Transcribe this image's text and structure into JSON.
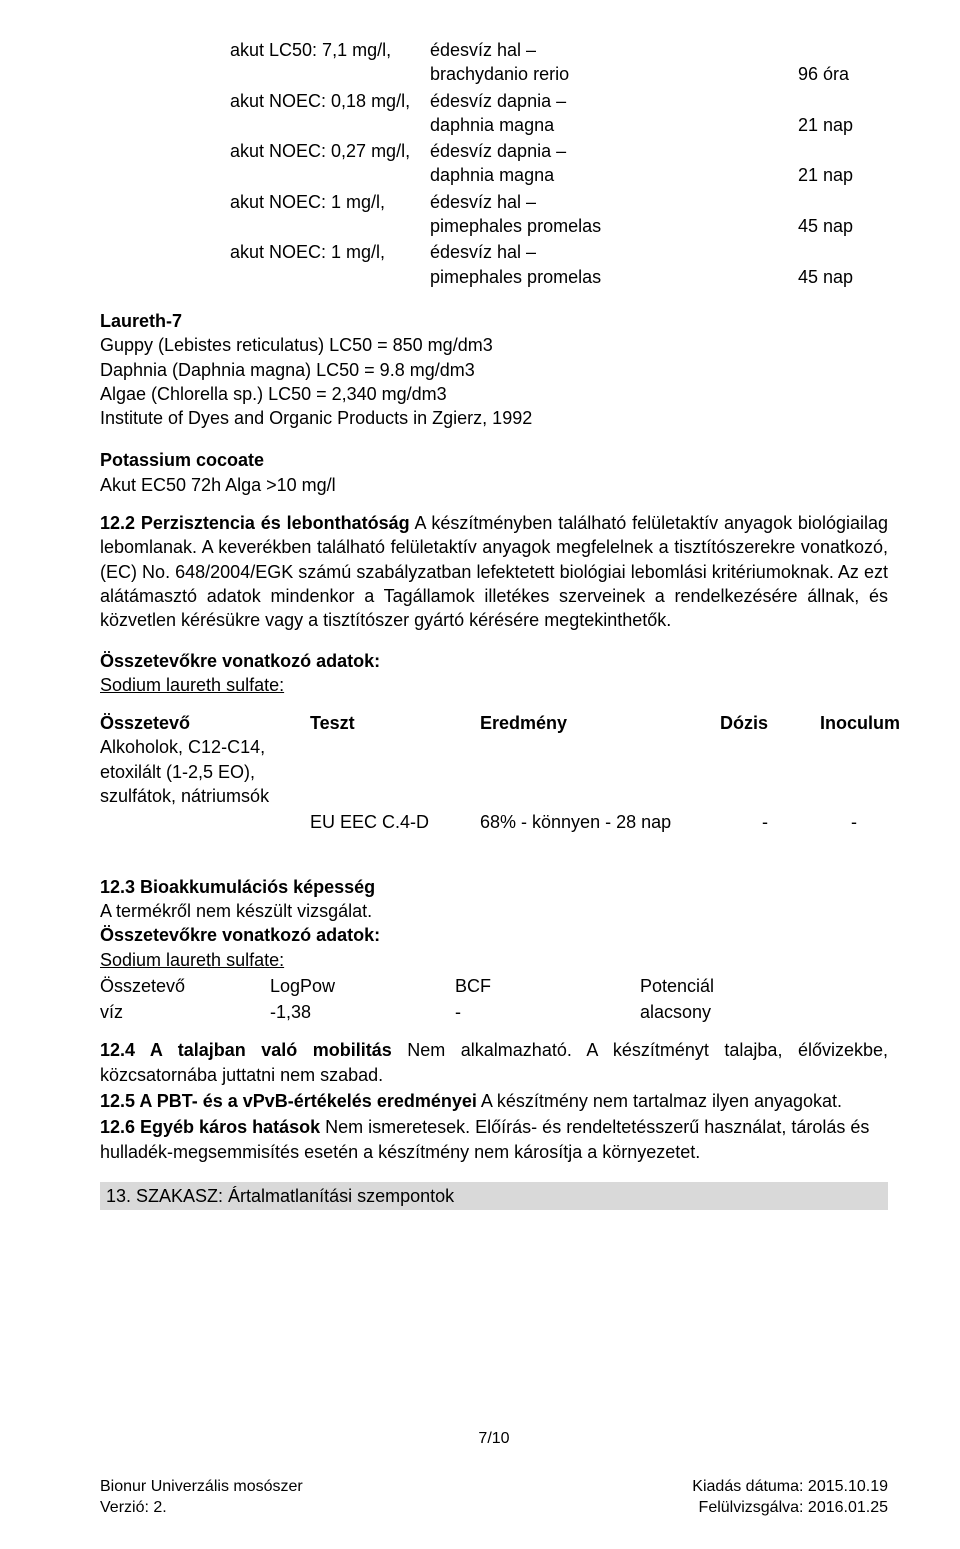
{
  "eco_table": {
    "rows": [
      {
        "label": "akut LC50: 7,1 mg/l,",
        "mid_lines": [
          "édesvíz hal –",
          "brachydanio rerio"
        ],
        "right": "96 óra"
      },
      {
        "label": "akut NOEC: 0,18 mg/l,",
        "mid_lines": [
          "édesvíz dapnia –",
          "daphnia magna"
        ],
        "right": "21 nap"
      },
      {
        "label": "akut NOEC: 0,27 mg/l,",
        "mid_lines": [
          "édesvíz dapnia –",
          "daphnia magna"
        ],
        "right": "21 nap"
      },
      {
        "label": "akut NOEC: 1 mg/l,",
        "mid_lines": [
          "édesvíz hal –",
          "pimephales promelas"
        ],
        "right": "45 nap"
      },
      {
        "label": "akut NOEC: 1 mg/l,",
        "mid_lines": [
          "édesvíz hal –",
          "pimephales promelas"
        ],
        "right": "45 nap"
      }
    ]
  },
  "laureth": {
    "title": "Laureth-7",
    "lines": [
      "Guppy (Lebistes reticulatus) LC50 = 850 mg/dm3",
      "Daphnia (Daphnia magna) LC50 = 9.8 mg/dm3",
      "Algae (Chlorella sp.) LC50 = 2,340 mg/dm3",
      "Institute of Dyes and Organic Products in Zgierz, 1992"
    ]
  },
  "potassium": {
    "title": "Potassium cocoate",
    "line": "Akut EC50 72h Alga >10 mg/l"
  },
  "s12_2": {
    "lead_bold": "12.2 Perzisztencia és lebonthatóság",
    "text": " A készítményben található felületaktív anyagok biológiailag lebomlanak. A keverékben található felületaktív anyagok megfelelnek a tisztítószerekre vonatkozó, (EC) No. 648/2004/EGK számú szabályzatban lefektetett biológiai lebomlási kritériumoknak. Az ezt alátámasztó adatok mindenkor a Tagállamok illetékes szerveinek a rendelkezésére állnak, és közvetlen kérésükre vagy a tisztítószer gyártó kérésére megtekinthetők."
  },
  "comp_data": {
    "title_bold": "Összetevőkre vonatkozó adatok:",
    "sodium": "Sodium laureth sulfate:",
    "headers": {
      "c1": "Összetevő",
      "c2": "Teszt",
      "c3": "Eredmény",
      "c4": "Dózis",
      "c5": "Inoculum"
    },
    "alk_lines": [
      "Alkoholok, C12-C14,",
      "etoxilált (1-2,5 EO),",
      "szulfátok, nátriumsók"
    ],
    "result_row": {
      "c1": "",
      "c2": "EU EEC C.4-D",
      "c3": "68% - könnyen - 28 nap",
      "c4": "-",
      "c5": "-"
    }
  },
  "s12_3": {
    "lead_bold": "12.3 Bioakkumulációs képesség",
    "line2": "A termékről nem készült vizsgálat.",
    "comp_bold": "Összetevőkre vonatkozó adatok:",
    "sodium": "Sodium laureth sulfate:",
    "hdr": {
      "p1": "Összetevő",
      "p2": "LogPow",
      "p3": "BCF",
      "p4": "Potenciál"
    },
    "row": {
      "p1": "víz",
      "p2": "-1,38",
      "p3": "-",
      "p4": "alacsony"
    }
  },
  "s12_4": {
    "lead_bold": "12.4 A talajban való mobilitás",
    "text": " Nem alkalmazható. A készítményt talajba, élővizekbe, közcsatornába juttatni nem szabad."
  },
  "s12_5": {
    "lead_bold": "12.5 A PBT- és a vPvB-értékelés eredményei",
    "text": " A készítmény nem tartalmaz ilyen anyagokat."
  },
  "s12_6": {
    "lead_bold": "12.6 Egyéb káros hatások",
    "text": " Nem ismeretesek. Előírás- és rendeltetésszerű használat, tárolás és hulladék-megsemmisítés esetén a készítmény nem károsítja a környezetet."
  },
  "section13": "13. SZAKASZ: Ártalmatlanítási szempontok",
  "footer": {
    "page": "7/10",
    "left1": "Bionur Univerzális mosószer",
    "right1": "Kiadás dátuma: 2015.10.19",
    "left2": "Verzió: 2.",
    "right2": "Felülvizsgálva: 2016.01.25"
  }
}
